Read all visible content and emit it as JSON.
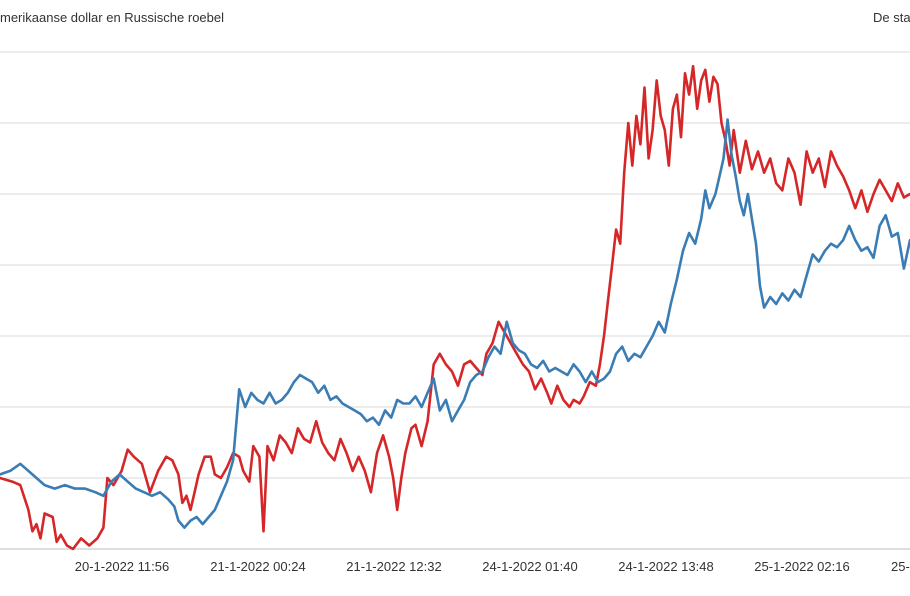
{
  "header": {
    "title_left": "merikaanse dollar en Russische roebel",
    "title_right": "De sta"
  },
  "chart_data": {
    "type": "line",
    "title": "merikaanse dollar en Russische roebel",
    "x_tick_labels": [
      "20-1-2022 11:56",
      "21-1-2022 00:24",
      "21-1-2022 12:32",
      "24-1-2022 01:40",
      "24-1-2022 13:48",
      "25-1-2022 02:16",
      "25-"
    ],
    "grid": true,
    "y_gridline_count": 8,
    "ylim": [
      0,
      7
    ],
    "colors": {
      "series_red": "#d62728",
      "series_blue": "#3a7db5",
      "grid": "#d9d9d9"
    },
    "series": [
      {
        "color": "#d62728",
        "points": [
          [
            0,
            1.0
          ],
          [
            6,
            0.95
          ],
          [
            10,
            0.9
          ],
          [
            14,
            0.55
          ],
          [
            16,
            0.25
          ],
          [
            18,
            0.35
          ],
          [
            20,
            0.15
          ],
          [
            22,
            0.5
          ],
          [
            26,
            0.45
          ],
          [
            28,
            0.1
          ],
          [
            30,
            0.2
          ],
          [
            33,
            0.05
          ],
          [
            36,
            0.0
          ],
          [
            40,
            0.15
          ],
          [
            44,
            0.05
          ],
          [
            48,
            0.15
          ],
          [
            51,
            0.3
          ],
          [
            53,
            1.0
          ],
          [
            56,
            0.9
          ],
          [
            60,
            1.1
          ],
          [
            63,
            1.4
          ],
          [
            66,
            1.3
          ],
          [
            70,
            1.2
          ],
          [
            74,
            0.8
          ],
          [
            78,
            1.1
          ],
          [
            82,
            1.3
          ],
          [
            85,
            1.25
          ],
          [
            88,
            1.05
          ],
          [
            90,
            0.65
          ],
          [
            92,
            0.75
          ],
          [
            94,
            0.55
          ],
          [
            96,
            0.8
          ],
          [
            98,
            1.05
          ],
          [
            101,
            1.3
          ],
          [
            104,
            1.3
          ],
          [
            106,
            1.05
          ],
          [
            109,
            1.0
          ],
          [
            112,
            1.15
          ],
          [
            115,
            1.35
          ],
          [
            118,
            1.3
          ],
          [
            120,
            1.1
          ],
          [
            123,
            0.95
          ],
          [
            125,
            1.45
          ],
          [
            128,
            1.3
          ],
          [
            130,
            0.25
          ],
          [
            132,
            1.45
          ],
          [
            135,
            1.25
          ],
          [
            138,
            1.6
          ],
          [
            141,
            1.5
          ],
          [
            144,
            1.35
          ],
          [
            147,
            1.7
          ],
          [
            150,
            1.55
          ],
          [
            153,
            1.5
          ],
          [
            156,
            1.8
          ],
          [
            159,
            1.5
          ],
          [
            162,
            1.35
          ],
          [
            165,
            1.25
          ],
          [
            168,
            1.55
          ],
          [
            171,
            1.35
          ],
          [
            174,
            1.1
          ],
          [
            177,
            1.3
          ],
          [
            180,
            1.1
          ],
          [
            183,
            0.8
          ],
          [
            186,
            1.35
          ],
          [
            189,
            1.6
          ],
          [
            192,
            1.3
          ],
          [
            194,
            1.0
          ],
          [
            196,
            0.55
          ],
          [
            198,
            1.0
          ],
          [
            200,
            1.35
          ],
          [
            203,
            1.7
          ],
          [
            205,
            1.75
          ],
          [
            208,
            1.45
          ],
          [
            211,
            1.8
          ],
          [
            214,
            2.6
          ],
          [
            217,
            2.75
          ],
          [
            220,
            2.6
          ],
          [
            223,
            2.5
          ],
          [
            226,
            2.3
          ],
          [
            229,
            2.6
          ],
          [
            232,
            2.65
          ],
          [
            235,
            2.55
          ],
          [
            238,
            2.45
          ],
          [
            240,
            2.75
          ],
          [
            243,
            2.9
          ],
          [
            246,
            3.2
          ],
          [
            249,
            3.05
          ],
          [
            252,
            2.9
          ],
          [
            255,
            2.75
          ],
          [
            258,
            2.6
          ],
          [
            261,
            2.5
          ],
          [
            264,
            2.25
          ],
          [
            267,
            2.4
          ],
          [
            270,
            2.2
          ],
          [
            272,
            2.05
          ],
          [
            275,
            2.3
          ],
          [
            278,
            2.1
          ],
          [
            281,
            2.0
          ],
          [
            283,
            2.1
          ],
          [
            286,
            2.05
          ],
          [
            288,
            2.15
          ],
          [
            291,
            2.35
          ],
          [
            294,
            2.3
          ],
          [
            296,
            2.6
          ],
          [
            298,
            3.0
          ],
          [
            300,
            3.5
          ],
          [
            302,
            4.0
          ],
          [
            304,
            4.5
          ],
          [
            306,
            4.3
          ],
          [
            308,
            5.3
          ],
          [
            310,
            6.0
          ],
          [
            312,
            5.4
          ],
          [
            314,
            6.1
          ],
          [
            316,
            5.7
          ],
          [
            318,
            6.5
          ],
          [
            320,
            5.5
          ],
          [
            322,
            5.9
          ],
          [
            324,
            6.6
          ],
          [
            326,
            6.1
          ],
          [
            328,
            5.9
          ],
          [
            330,
            5.4
          ],
          [
            332,
            6.2
          ],
          [
            334,
            6.4
          ],
          [
            336,
            5.8
          ],
          [
            338,
            6.7
          ],
          [
            340,
            6.4
          ],
          [
            342,
            6.8
          ],
          [
            344,
            6.2
          ],
          [
            346,
            6.6
          ],
          [
            348,
            6.75
          ],
          [
            350,
            6.3
          ],
          [
            352,
            6.65
          ],
          [
            354,
            6.55
          ],
          [
            356,
            6.0
          ],
          [
            358,
            5.75
          ],
          [
            360,
            5.4
          ],
          [
            362,
            5.9
          ],
          [
            365,
            5.3
          ],
          [
            368,
            5.75
          ],
          [
            371,
            5.35
          ],
          [
            374,
            5.6
          ],
          [
            377,
            5.3
          ],
          [
            380,
            5.5
          ],
          [
            383,
            5.15
          ],
          [
            386,
            5.05
          ],
          [
            389,
            5.5
          ],
          [
            392,
            5.3
          ],
          [
            395,
            4.85
          ],
          [
            398,
            5.6
          ],
          [
            401,
            5.3
          ],
          [
            404,
            5.5
          ],
          [
            407,
            5.1
          ],
          [
            410,
            5.6
          ],
          [
            413,
            5.4
          ],
          [
            416,
            5.25
          ],
          [
            419,
            5.05
          ],
          [
            422,
            4.8
          ],
          [
            425,
            5.05
          ],
          [
            428,
            4.75
          ],
          [
            431,
            5.0
          ],
          [
            434,
            5.2
          ],
          [
            437,
            5.05
          ],
          [
            440,
            4.9
          ],
          [
            443,
            5.15
          ],
          [
            446,
            4.95
          ],
          [
            449,
            5.0
          ]
        ]
      },
      {
        "color": "#3a7db5",
        "points": [
          [
            0,
            1.05
          ],
          [
            5,
            1.1
          ],
          [
            10,
            1.2
          ],
          [
            14,
            1.1
          ],
          [
            18,
            1.0
          ],
          [
            22,
            0.9
          ],
          [
            27,
            0.85
          ],
          [
            32,
            0.9
          ],
          [
            37,
            0.85
          ],
          [
            42,
            0.85
          ],
          [
            47,
            0.8
          ],
          [
            51,
            0.75
          ],
          [
            55,
            0.95
          ],
          [
            59,
            1.05
          ],
          [
            63,
            0.95
          ],
          [
            67,
            0.85
          ],
          [
            71,
            0.8
          ],
          [
            75,
            0.75
          ],
          [
            79,
            0.8
          ],
          [
            83,
            0.7
          ],
          [
            86,
            0.6
          ],
          [
            88,
            0.4
          ],
          [
            91,
            0.3
          ],
          [
            94,
            0.4
          ],
          [
            97,
            0.45
          ],
          [
            100,
            0.35
          ],
          [
            103,
            0.45
          ],
          [
            106,
            0.55
          ],
          [
            109,
            0.75
          ],
          [
            112,
            0.95
          ],
          [
            115,
            1.25
          ],
          [
            118,
            2.25
          ],
          [
            121,
            2.0
          ],
          [
            124,
            2.2
          ],
          [
            127,
            2.1
          ],
          [
            130,
            2.05
          ],
          [
            133,
            2.2
          ],
          [
            136,
            2.05
          ],
          [
            139,
            2.1
          ],
          [
            142,
            2.2
          ],
          [
            145,
            2.35
          ],
          [
            148,
            2.45
          ],
          [
            151,
            2.4
          ],
          [
            154,
            2.35
          ],
          [
            157,
            2.2
          ],
          [
            160,
            2.3
          ],
          [
            163,
            2.1
          ],
          [
            166,
            2.15
          ],
          [
            169,
            2.05
          ],
          [
            172,
            2.0
          ],
          [
            175,
            1.95
          ],
          [
            178,
            1.9
          ],
          [
            181,
            1.8
          ],
          [
            184,
            1.85
          ],
          [
            187,
            1.75
          ],
          [
            190,
            1.95
          ],
          [
            193,
            1.85
          ],
          [
            196,
            2.1
          ],
          [
            199,
            2.05
          ],
          [
            202,
            2.05
          ],
          [
            205,
            2.15
          ],
          [
            208,
            2.0
          ],
          [
            211,
            2.2
          ],
          [
            214,
            2.4
          ],
          [
            217,
            1.95
          ],
          [
            220,
            2.1
          ],
          [
            223,
            1.8
          ],
          [
            226,
            1.95
          ],
          [
            229,
            2.1
          ],
          [
            232,
            2.35
          ],
          [
            235,
            2.45
          ],
          [
            238,
            2.5
          ],
          [
            241,
            2.7
          ],
          [
            244,
            2.85
          ],
          [
            247,
            2.75
          ],
          [
            250,
            3.2
          ],
          [
            253,
            2.9
          ],
          [
            256,
            2.8
          ],
          [
            259,
            2.75
          ],
          [
            262,
            2.6
          ],
          [
            265,
            2.55
          ],
          [
            268,
            2.65
          ],
          [
            271,
            2.5
          ],
          [
            274,
            2.55
          ],
          [
            277,
            2.5
          ],
          [
            280,
            2.45
          ],
          [
            283,
            2.6
          ],
          [
            286,
            2.5
          ],
          [
            289,
            2.35
          ],
          [
            292,
            2.5
          ],
          [
            295,
            2.35
          ],
          [
            298,
            2.4
          ],
          [
            301,
            2.5
          ],
          [
            304,
            2.75
          ],
          [
            307,
            2.85
          ],
          [
            310,
            2.65
          ],
          [
            313,
            2.75
          ],
          [
            316,
            2.7
          ],
          [
            319,
            2.85
          ],
          [
            322,
            3.0
          ],
          [
            325,
            3.2
          ],
          [
            328,
            3.05
          ],
          [
            331,
            3.45
          ],
          [
            334,
            3.8
          ],
          [
            337,
            4.2
          ],
          [
            340,
            4.45
          ],
          [
            343,
            4.3
          ],
          [
            346,
            4.65
          ],
          [
            348,
            5.05
          ],
          [
            350,
            4.8
          ],
          [
            353,
            5.0
          ],
          [
            355,
            5.25
          ],
          [
            357,
            5.5
          ],
          [
            359,
            6.05
          ],
          [
            361,
            5.55
          ],
          [
            363,
            5.25
          ],
          [
            365,
            4.9
          ],
          [
            367,
            4.7
          ],
          [
            369,
            5.0
          ],
          [
            371,
            4.65
          ],
          [
            373,
            4.3
          ],
          [
            375,
            3.7
          ],
          [
            377,
            3.4
          ],
          [
            380,
            3.55
          ],
          [
            383,
            3.45
          ],
          [
            386,
            3.6
          ],
          [
            389,
            3.5
          ],
          [
            392,
            3.65
          ],
          [
            395,
            3.55
          ],
          [
            398,
            3.85
          ],
          [
            401,
            4.15
          ],
          [
            404,
            4.05
          ],
          [
            407,
            4.2
          ],
          [
            410,
            4.3
          ],
          [
            413,
            4.25
          ],
          [
            416,
            4.35
          ],
          [
            419,
            4.55
          ],
          [
            422,
            4.35
          ],
          [
            425,
            4.2
          ],
          [
            428,
            4.25
          ],
          [
            431,
            4.1
          ],
          [
            434,
            4.55
          ],
          [
            437,
            4.7
          ],
          [
            440,
            4.4
          ],
          [
            443,
            4.45
          ],
          [
            446,
            3.95
          ],
          [
            449,
            4.35
          ]
        ]
      }
    ]
  }
}
